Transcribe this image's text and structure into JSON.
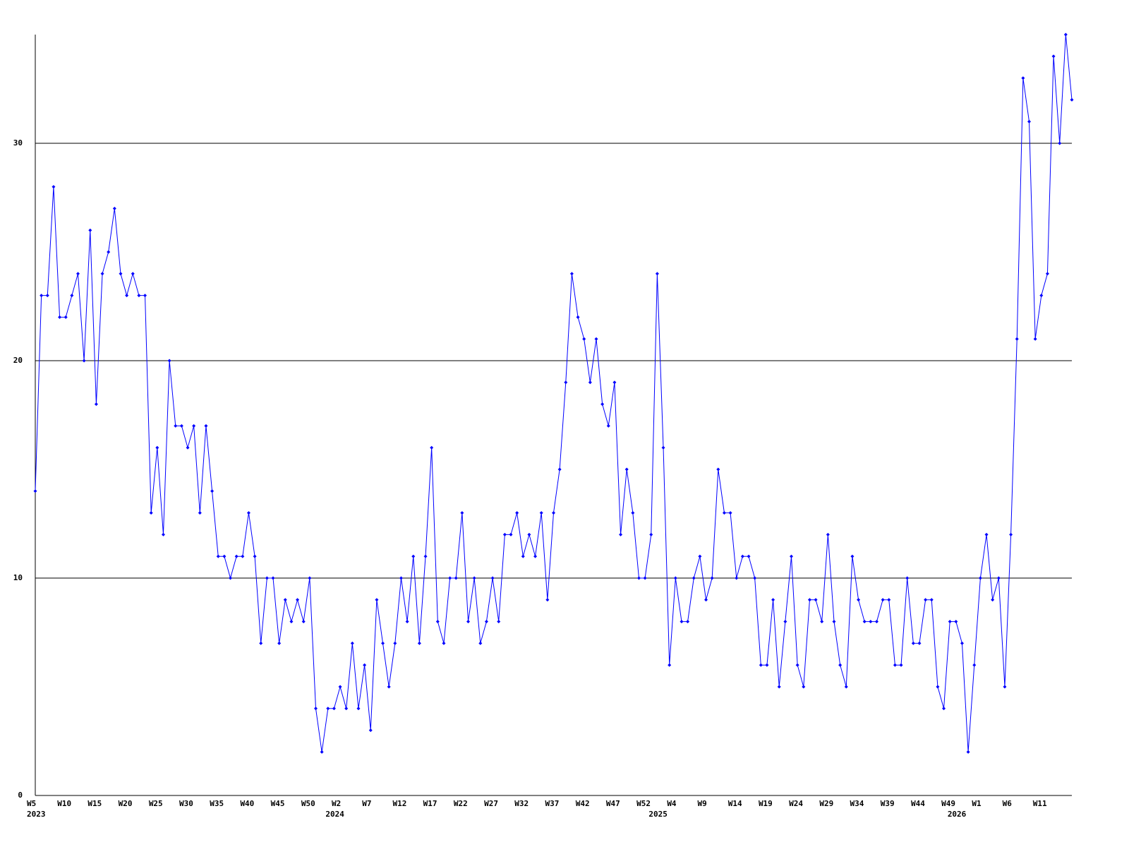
{
  "chart_data": {
    "type": "line",
    "color": "#0000ff",
    "grid": true,
    "ylim": [
      0,
      35
    ],
    "yticks": [
      0,
      10,
      20,
      30
    ],
    "categories": [
      "W5",
      null,
      null,
      null,
      null,
      "W10",
      null,
      null,
      null,
      null,
      "W15",
      null,
      null,
      null,
      null,
      "W20",
      null,
      null,
      null,
      null,
      "W25",
      null,
      null,
      null,
      null,
      "W30",
      null,
      null,
      null,
      null,
      "W35",
      null,
      null,
      null,
      null,
      "W40",
      null,
      null,
      null,
      null,
      "W45",
      null,
      null,
      null,
      null,
      "W50",
      null,
      null,
      null,
      null,
      "W2",
      null,
      null,
      null,
      null,
      "W7",
      null,
      null,
      null,
      null,
      "W12",
      null,
      null,
      null,
      null,
      "W17",
      null,
      null,
      null,
      null,
      "W22",
      null,
      null,
      null,
      null,
      "W27",
      null,
      null,
      null,
      null,
      "W32",
      null,
      null,
      null,
      null,
      "W37",
      null,
      null,
      null,
      null,
      "W42",
      null,
      null,
      null,
      null,
      "W47",
      null,
      null,
      null,
      null,
      "W52",
      null,
      null,
      null,
      null,
      "W4",
      null,
      null,
      null,
      null,
      "W9",
      null,
      null,
      null,
      null,
      "W14",
      null,
      null,
      null,
      null,
      "W19",
      null,
      null,
      null,
      null,
      "W24",
      null,
      null,
      null,
      null,
      "W29",
      null,
      null,
      null,
      null,
      "W34",
      null,
      null,
      null,
      null,
      "W39",
      null,
      null,
      null,
      null,
      "W44",
      null,
      null,
      null,
      null,
      "W49",
      null,
      null,
      null,
      null,
      "W1",
      null,
      null,
      null,
      null,
      "W6",
      null,
      null,
      null,
      null,
      "W11",
      null,
      null,
      null,
      null,
      null
    ],
    "years": [
      "2023",
      null,
      null,
      null,
      null,
      null,
      null,
      null,
      null,
      null,
      null,
      null,
      null,
      null,
      null,
      null,
      null,
      null,
      null,
      null,
      null,
      null,
      null,
      null,
      null,
      null,
      null,
      null,
      null,
      null,
      null,
      null,
      null,
      null,
      null,
      null,
      null,
      null,
      null,
      null,
      null,
      null,
      null,
      null,
      null,
      null,
      null,
      null,
      null,
      "2024",
      null,
      null,
      null,
      null,
      null,
      null,
      null,
      null,
      null,
      null,
      null,
      null,
      null,
      null,
      null,
      null,
      null,
      null,
      null,
      null,
      null,
      null,
      null,
      null,
      null,
      null,
      null,
      null,
      null,
      null,
      null,
      null,
      null,
      null,
      null,
      null,
      null,
      null,
      null,
      null,
      null,
      null,
      null,
      null,
      null,
      null,
      null,
      null,
      null,
      null,
      null,
      null,
      "2025",
      null,
      null,
      null,
      null,
      null,
      null,
      null,
      null,
      null,
      null,
      null,
      null,
      null,
      null,
      null,
      null,
      null,
      null,
      null,
      null,
      null,
      null,
      null,
      null,
      null,
      null,
      null,
      null,
      null,
      null,
      null,
      null,
      null,
      null,
      null,
      null,
      null,
      null,
      null,
      null,
      null,
      null,
      null,
      null,
      null,
      null,
      null,
      null,
      "2026",
      null,
      null,
      null,
      null,
      null,
      null,
      null,
      null,
      null,
      null,
      null,
      null,
      null,
      null,
      null
    ],
    "values": [
      14,
      23,
      23,
      28,
      22,
      22,
      23,
      24,
      20,
      26,
      18,
      24,
      25,
      27,
      24,
      23,
      24,
      23,
      23,
      13,
      16,
      12,
      20,
      17,
      17,
      16,
      17,
      13,
      17,
      14,
      11,
      11,
      10,
      11,
      11,
      13,
      11,
      7,
      10,
      10,
      7,
      9,
      8,
      9,
      8,
      10,
      4,
      2,
      4,
      4,
      5,
      4,
      7,
      4,
      6,
      3,
      9,
      7,
      5,
      7,
      10,
      8,
      11,
      7,
      11,
      16,
      8,
      7,
      10,
      10,
      13,
      8,
      10,
      7,
      8,
      10,
      8,
      12,
      12,
      13,
      11,
      12,
      11,
      13,
      9,
      13,
      15,
      19,
      24,
      22,
      21,
      19,
      21,
      18,
      17,
      19,
      12,
      15,
      13,
      10,
      10,
      12,
      24,
      16,
      6,
      10,
      8,
      8,
      10,
      11,
      9,
      10,
      15,
      13,
      13,
      10,
      11,
      11,
      10,
      6,
      6,
      9,
      5,
      8,
      11,
      6,
      5,
      9,
      9,
      8,
      12,
      8,
      6,
      5,
      11,
      9,
      8,
      8,
      8,
      9,
      9,
      6,
      6,
      10,
      7,
      7,
      9,
      9,
      5,
      4,
      8,
      8,
      7,
      2,
      6,
      10,
      12,
      9,
      10,
      5,
      12,
      21,
      33,
      31,
      21,
      23,
      24,
      34,
      30,
      35,
      32
    ]
  }
}
